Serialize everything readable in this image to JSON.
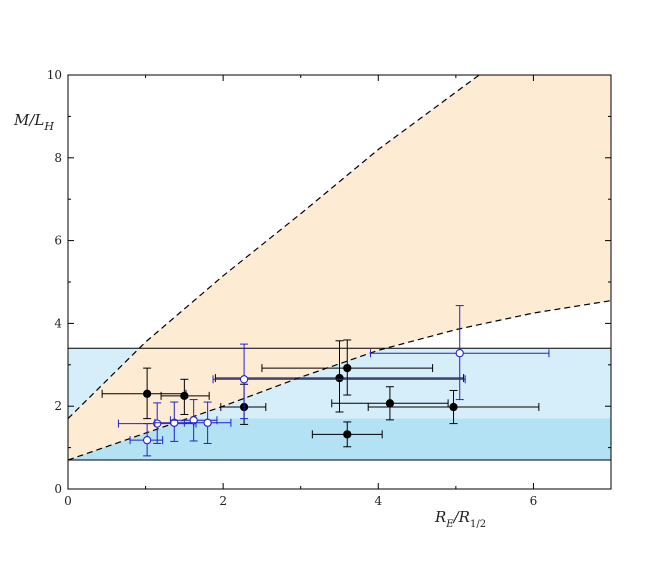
{
  "chart_data": {
    "type": "scatter",
    "title": "",
    "xlabel": "R",
    "xlabel_sub": "E",
    "xlabel_mid": "/R",
    "xlabel_sub2": "1/2",
    "ylabel": "M/L",
    "ylabel_sub": "H",
    "xlim": [
      0,
      7
    ],
    "ylim": [
      0,
      10
    ],
    "x_ticks": [
      0,
      2,
      4,
      6
    ],
    "y_ticks": [
      0,
      2,
      4,
      6,
      8,
      10
    ],
    "x_tick_labels": [
      "0",
      "2",
      "4",
      "6"
    ],
    "y_tick_labels": [
      "0",
      "2",
      "4",
      "6",
      "8",
      "10"
    ],
    "grid": false,
    "legend": "none",
    "bands": [
      {
        "y": [
          0.7,
          3.4
        ],
        "color": "#d6eefa"
      },
      {
        "y": [
          0.7,
          1.7
        ],
        "color": "#b3e2f4"
      }
    ],
    "shaded_region": {
      "color": "#fdebd4",
      "upper_curve": [
        [
          0,
          1.7
        ],
        [
          1,
          3.55
        ],
        [
          2,
          5.15
        ],
        [
          3,
          6.65
        ],
        [
          4,
          8.2
        ],
        [
          5.3,
          10
        ]
      ],
      "lower_curve": [
        [
          0,
          0.7
        ],
        [
          1,
          1.35
        ],
        [
          2,
          2.0
        ],
        [
          3,
          2.7
        ],
        [
          4,
          3.35
        ],
        [
          5,
          3.85
        ],
        [
          6,
          4.25
        ],
        [
          7,
          4.55
        ]
      ]
    },
    "series": [
      {
        "color": "#000000",
        "filled": true,
        "points": [
          {
            "x": 1.02,
            "y": 2.3,
            "xerr": [
              0.58,
              0.5
            ],
            "yerr": [
              0.6,
              0.62
            ]
          },
          {
            "x": 1.5,
            "y": 2.25,
            "xerr": [
              0.3,
              0.32
            ],
            "yerr": [
              0.45,
              0.4
            ]
          },
          {
            "x": 2.27,
            "y": 1.98,
            "xerr": [
              0.3,
              0.28
            ],
            "yerr": [
              0.42,
              0.55
            ]
          },
          {
            "x": 3.5,
            "y": 2.68,
            "xerr": [
              1.6,
              1.6
            ],
            "yerr": [
              0.82,
              0.9
            ]
          },
          {
            "x": 3.6,
            "y": 2.92,
            "xerr": [
              1.1,
              1.1
            ],
            "yerr": [
              0.65,
              0.68
            ]
          },
          {
            "x": 3.6,
            "y": 1.32,
            "xerr": [
              0.45,
              0.45
            ],
            "yerr": [
              0.3,
              0.3
            ]
          },
          {
            "x": 4.15,
            "y": 2.07,
            "xerr": [
              0.75,
              0.75
            ],
            "yerr": [
              0.4,
              0.4
            ]
          },
          {
            "x": 4.97,
            "y": 1.98,
            "xerr": [
              1.1,
              1.1
            ],
            "yerr": [
              0.4,
              0.4
            ]
          }
        ]
      },
      {
        "color": "#2222cc",
        "filled": false,
        "points": [
          {
            "x": 1.02,
            "y": 1.18,
            "xerr": [
              0.22,
              0.2
            ],
            "yerr": [
              0.38,
              0.4
            ]
          },
          {
            "x": 1.15,
            "y": 1.58,
            "xerr": [
              0.5,
              0.5
            ],
            "yerr": [
              0.48,
              0.5
            ]
          },
          {
            "x": 1.37,
            "y": 1.6,
            "xerr": [
              0.25,
              0.25
            ],
            "yerr": [
              0.45,
              0.5
            ]
          },
          {
            "x": 1.62,
            "y": 1.66,
            "xerr": [
              0.3,
              0.3
            ],
            "yerr": [
              0.5,
              0.5
            ]
          },
          {
            "x": 1.8,
            "y": 1.6,
            "xerr": [
              0.3,
              0.3
            ],
            "yerr": [
              0.5,
              0.5
            ]
          },
          {
            "x": 2.27,
            "y": 2.65,
            "xerr": [
              0.4,
              2.85
            ],
            "yerr": [
              0.95,
              0.85
            ]
          },
          {
            "x": 5.05,
            "y": 3.28,
            "xerr": [
              1.15,
              1.15
            ],
            "yerr": [
              1.12,
              1.15
            ]
          }
        ]
      }
    ]
  }
}
